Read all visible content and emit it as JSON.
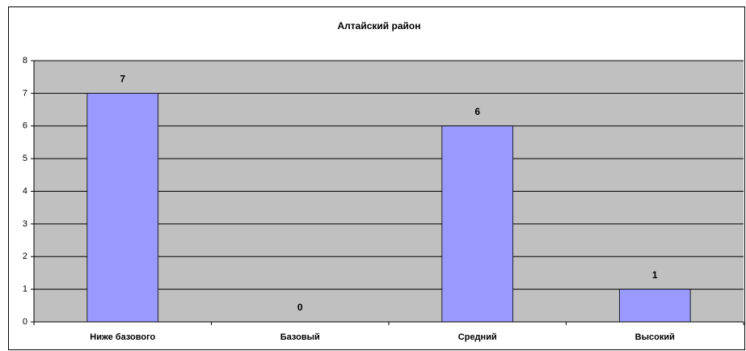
{
  "chart_data": {
    "type": "bar",
    "title": "Алтайский район",
    "categories": [
      "Ниже базового",
      "Базовый",
      "Средний",
      "Высокий"
    ],
    "values": [
      7,
      0,
      6,
      1
    ],
    "color": "#9999ff",
    "ylim": [
      0,
      8
    ],
    "yticks": [
      0,
      1,
      2,
      3,
      4,
      5,
      6,
      7,
      8
    ],
    "grid": true
  }
}
